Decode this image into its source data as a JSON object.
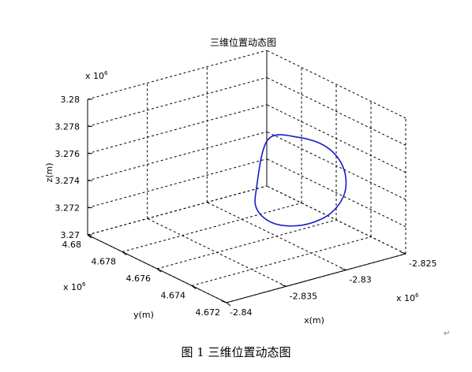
{
  "chart_data": {
    "type": "line",
    "title": "三维位置动态图",
    "xlabel": "x(m)",
    "ylabel": "y(m)",
    "zlabel": "z(m)",
    "x_exponent": "x 10",
    "x_exponent_power": "6",
    "y_exponent": "x 10",
    "y_exponent_power": "6",
    "z_exponent": "x 10",
    "z_exponent_power": "6",
    "x_ticks": [
      "-2.84",
      "-2.835",
      "-2.83",
      "-2.825"
    ],
    "y_ticks": [
      "4.672",
      "4.674",
      "4.676",
      "4.678",
      "4.68"
    ],
    "z_ticks": [
      "3.27",
      "3.272",
      "3.274",
      "3.276",
      "3.278",
      "3.28"
    ],
    "xlim": [
      -2.84,
      -2.825
    ],
    "ylim": [
      4.672,
      4.68
    ],
    "zlim": [
      3.27,
      3.28
    ],
    "grid": true,
    "series": [
      {
        "color": "#1a1ac8",
        "description": "closed elliptical trajectory",
        "x": [
          -2.831,
          -2.8294,
          -2.8284,
          -2.8285,
          -2.8295,
          -2.831,
          -2.8327,
          -2.8338,
          -2.8338,
          -2.8327,
          -2.831
        ],
        "y": [
          4.6758,
          4.6751,
          4.6742,
          4.6732,
          4.6724,
          4.6722,
          4.6726,
          4.6735,
          4.6745,
          4.6753,
          4.6758
        ],
        "z": [
          3.2775,
          3.2777,
          3.2773,
          3.2765,
          3.2754,
          3.2743,
          3.2736,
          3.2734,
          3.2738,
          3.2746,
          3.2775
        ]
      }
    ]
  },
  "caption": "图 1  三维位置动态图",
  "return_mark": "↵"
}
